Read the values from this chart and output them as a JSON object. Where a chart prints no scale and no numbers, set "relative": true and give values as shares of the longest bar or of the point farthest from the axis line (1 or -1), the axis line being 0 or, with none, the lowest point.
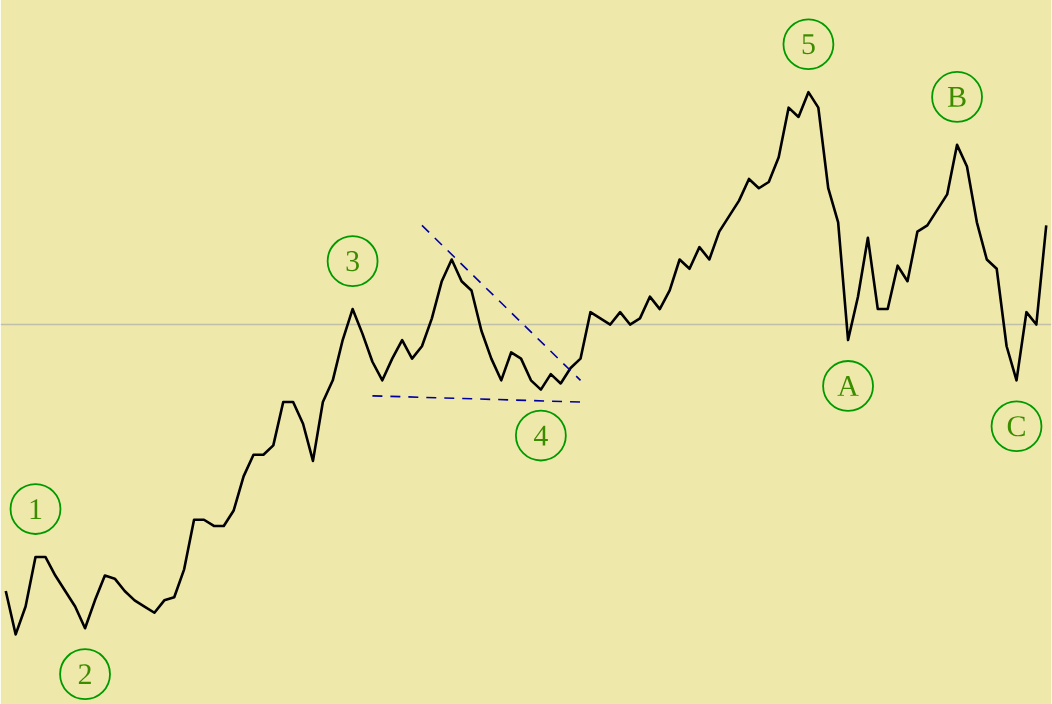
{
  "chart_data": {
    "type": "line",
    "relative": true,
    "marker": "none",
    "categories": [
      null,
      null,
      null,
      null,
      null,
      null,
      null,
      null,
      null,
      null,
      null,
      null,
      null,
      null,
      null,
      null,
      null,
      null,
      null,
      null,
      null,
      null,
      null,
      null,
      null,
      null,
      null,
      null,
      null,
      null,
      null,
      null,
      null,
      null,
      null,
      null,
      null,
      null,
      null,
      null,
      null,
      null,
      null,
      null,
      null,
      null,
      null,
      null,
      null,
      null,
      null,
      null,
      null,
      null,
      null,
      null,
      null,
      null,
      null,
      null,
      null,
      null,
      null,
      null,
      null,
      null,
      null,
      null,
      null,
      null,
      null,
      null,
      null,
      null,
      null,
      null,
      null,
      null,
      null,
      null,
      null,
      null,
      null,
      null,
      null,
      null,
      null,
      null,
      null,
      null,
      null,
      null,
      null,
      null,
      null,
      null,
      null,
      null,
      null,
      null,
      null,
      null,
      null,
      null,
      null,
      null
    ],
    "series": [
      {
        "color": "#000000",
        "values": [
          -0.86,
          -1,
          -0.91,
          -0.75,
          -0.75,
          -0.81,
          -0.86,
          -0.91,
          -0.98,
          -0.89,
          -0.81,
          -0.82,
          -0.86,
          -0.89,
          -0.91,
          -0.93,
          -0.89,
          -0.88,
          -0.79,
          -0.63,
          -0.63,
          -0.65,
          -0.65,
          -0.6,
          -0.49,
          -0.42,
          -0.42,
          -0.39,
          -0.25,
          -0.25,
          -0.32,
          -0.44,
          -0.25,
          -0.18,
          -0.05,
          0.05,
          -0.03,
          -0.12,
          -0.18,
          -0.11,
          -0.05,
          -0.11,
          -0.07,
          0.02,
          0.14,
          0.21,
          0.14,
          0.11,
          -0.02,
          -0.11,
          -0.18,
          -0.09,
          -0.11,
          -0.18,
          -0.21,
          -0.16,
          -0.19,
          -0.14,
          -0.11,
          0.04,
          0.02,
          0.0,
          0.04,
          0.0,
          0.02,
          0.09,
          0.05,
          0.11,
          0.21,
          0.18,
          0.25,
          0.21,
          0.3,
          0.35,
          0.4,
          0.47,
          0.44,
          0.46,
          0.54,
          0.7,
          0.67,
          0.75,
          0.7,
          0.44,
          0.33,
          -0.05,
          0.09,
          0.28,
          0.05,
          0.05,
          0.19,
          0.14,
          0.3,
          0.32,
          0.37,
          0.42,
          0.58,
          0.51,
          0.33,
          0.21,
          0.18,
          -0.07,
          -0.18,
          0.04,
          0.0,
          0.32
        ]
      },
      {
        "type": "line",
        "color": "#0000a0",
        "line_style": "dashed",
        "values": [
          null,
          null,
          null,
          null,
          null,
          null,
          null,
          null,
          null,
          null,
          null,
          null,
          null,
          null,
          null,
          null,
          null,
          null,
          null,
          null,
          null,
          null,
          null,
          null,
          null,
          null,
          null,
          null,
          null,
          null,
          null,
          null,
          null,
          null,
          null,
          null,
          null,
          null,
          null,
          null,
          null,
          null,
          0.32,
          null,
          null,
          null,
          null,
          null,
          null,
          null,
          null,
          null,
          null,
          null,
          null,
          null,
          null,
          null,
          -0.18,
          null,
          null,
          null,
          null,
          null,
          null,
          null,
          null,
          null,
          null,
          null,
          null,
          null,
          null,
          null,
          null,
          null,
          null,
          null,
          null,
          null,
          null,
          null,
          null,
          null,
          null,
          null,
          null,
          null,
          null,
          null,
          null,
          null,
          null,
          null,
          null,
          null,
          null,
          null,
          null,
          null,
          null,
          null,
          null,
          null,
          null,
          null
        ]
      },
      {
        "type": "line",
        "color": "#0000a0",
        "line_style": "dashed",
        "values": [
          null,
          null,
          null,
          null,
          null,
          null,
          null,
          null,
          null,
          null,
          null,
          null,
          null,
          null,
          null,
          null,
          null,
          null,
          null,
          null,
          null,
          null,
          null,
          null,
          null,
          null,
          null,
          null,
          null,
          null,
          null,
          null,
          null,
          null,
          null,
          null,
          null,
          -0.23,
          null,
          null,
          null,
          null,
          null,
          null,
          null,
          null,
          null,
          null,
          null,
          null,
          null,
          null,
          null,
          null,
          null,
          null,
          null,
          null,
          -0.25,
          null,
          null,
          null,
          null,
          null,
          null,
          null,
          null,
          null,
          null,
          null,
          null,
          null,
          null,
          null,
          null,
          null,
          null,
          null,
          null,
          null,
          null,
          null,
          null,
          null,
          null,
          null,
          null,
          null,
          null,
          null,
          null,
          null,
          null,
          null,
          null,
          null,
          null,
          null,
          null,
          null,
          null,
          null,
          null,
          null,
          null,
          null
        ]
      }
    ],
    "annotations": [
      {
        "text": "1",
        "y": -0.75
      },
      {
        "text": "2",
        "y": -0.98
      },
      {
        "text": "3",
        "y": 0.05
      },
      {
        "text": "4",
        "y": -0.21
      },
      {
        "text": "5",
        "y": 0.75
      },
      {
        "text": "A",
        "y": -0.05
      },
      {
        "text": "B",
        "y": 0.58
      },
      {
        "text": "C",
        "y": -0.18
      }
    ]
  }
}
